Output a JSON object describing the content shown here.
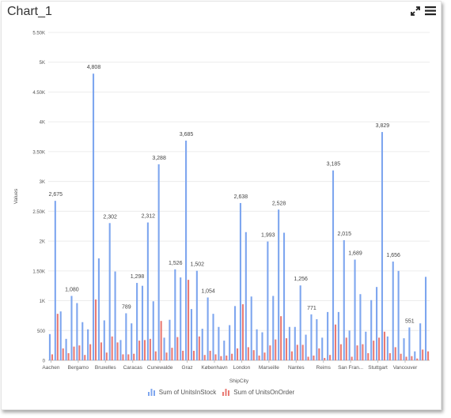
{
  "title": "Chart_1",
  "toolbar": {
    "expand_icon": "expand-arrows-icon",
    "menu_icon": "hamburger-menu-icon"
  },
  "colors": {
    "units_in_stock": "#7ea6ef",
    "units_on_order": "#e97a73",
    "grid": "#ececec",
    "axis_text": "#555555"
  },
  "chart_data": {
    "type": "bar",
    "xlabel": "ShipCity",
    "ylabel": "Values",
    "ylim": [
      0,
      5500
    ],
    "yticks": [
      {
        "v": 0,
        "t": "0"
      },
      {
        "v": 500,
        "t": "500"
      },
      {
        "v": 1000,
        "t": "1K"
      },
      {
        "v": 1500,
        "t": "1.50K"
      },
      {
        "v": 2000,
        "t": "2K"
      },
      {
        "v": 2500,
        "t": "2.50K"
      },
      {
        "v": 3000,
        "t": "3K"
      },
      {
        "v": 3500,
        "t": "3.50K"
      },
      {
        "v": 4000,
        "t": "4K"
      },
      {
        "v": 4500,
        "t": "4.50K"
      },
      {
        "v": 5000,
        "t": "5K"
      },
      {
        "v": 5500,
        "t": "5.50K"
      }
    ],
    "grid": true,
    "legend_position": "bottom",
    "tick_labels": [
      {
        "index": 0,
        "text": "Aachen"
      },
      {
        "index": 5,
        "text": "Bergamo"
      },
      {
        "index": 10,
        "text": "Bruxelles"
      },
      {
        "index": 15,
        "text": "Caracas"
      },
      {
        "index": 20,
        "text": "Cunewalde"
      },
      {
        "index": 25,
        "text": "Graz"
      },
      {
        "index": 30,
        "text": "København"
      },
      {
        "index": 35,
        "text": "London"
      },
      {
        "index": 40,
        "text": "Marseille"
      },
      {
        "index": 45,
        "text": "Nantes"
      },
      {
        "index": 50,
        "text": "Reims"
      },
      {
        "index": 55,
        "text": "San Fran..."
      },
      {
        "index": 60,
        "text": "Stuttgart"
      },
      {
        "index": 65,
        "text": "Vancouver"
      }
    ],
    "series": [
      {
        "name": "Sum of UnitsInStock",
        "values": [
          440,
          2675,
          820,
          360,
          1080,
          960,
          640,
          520,
          4808,
          1710,
          670,
          2302,
          1490,
          340,
          789,
          620,
          1298,
          1250,
          2312,
          990,
          3288,
          380,
          680,
          1526,
          1390,
          3685,
          860,
          1502,
          530,
          1054,
          780,
          560,
          330,
          590,
          910,
          2638,
          2150,
          1070,
          520,
          470,
          1993,
          1080,
          2528,
          2140,
          560,
          560,
          1256,
          430,
          771,
          690,
          380,
          810,
          3185,
          810,
          2015,
          500,
          1689,
          1110,
          480,
          1010,
          1230,
          3829,
          400,
          1656,
          1500,
          370,
          551,
          150,
          620,
          1400
        ],
        "labels": [
          null,
          "2,675",
          null,
          null,
          "1,080",
          null,
          null,
          null,
          "4,808",
          null,
          null,
          "2,302",
          null,
          null,
          "789",
          null,
          "1,298",
          null,
          "2,312",
          null,
          "3,288",
          null,
          null,
          "1,526",
          null,
          "3,685",
          null,
          "1,502",
          null,
          "1,054",
          null,
          null,
          null,
          null,
          null,
          "2,638",
          null,
          null,
          null,
          null,
          "1,993",
          null,
          "2,528",
          null,
          null,
          null,
          "1,256",
          null,
          "771",
          null,
          null,
          null,
          "3,185",
          null,
          "2,015",
          null,
          "1,689",
          null,
          null,
          null,
          null,
          "3,829",
          null,
          "1,656",
          null,
          null,
          "551",
          null,
          null,
          null
        ]
      },
      {
        "name": "Sum of UnitsOnOrder",
        "values": [
          100,
          780,
          200,
          120,
          230,
          250,
          90,
          270,
          1020,
          300,
          130,
          400,
          300,
          100,
          100,
          110,
          330,
          340,
          360,
          150,
          660,
          130,
          210,
          390,
          160,
          1350,
          160,
          400,
          90,
          160,
          100,
          70,
          80,
          110,
          200,
          940,
          220,
          170,
          80,
          130,
          250,
          350,
          740,
          370,
          150,
          260,
          260,
          60,
          80,
          200,
          40,
          90,
          600,
          270,
          380,
          60,
          250,
          270,
          120,
          330,
          380,
          480,
          120,
          220,
          110,
          60,
          70,
          30,
          180,
          150
        ]
      }
    ]
  }
}
